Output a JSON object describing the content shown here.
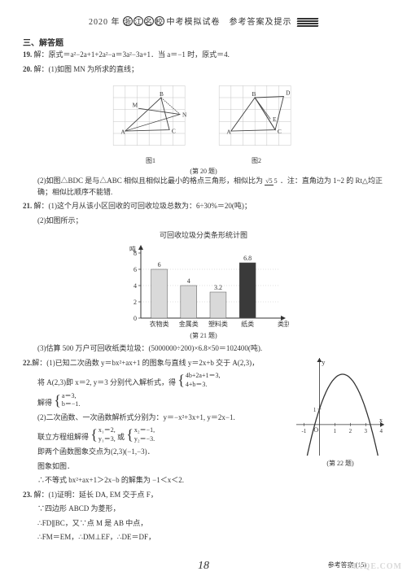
{
  "header": {
    "year": "2020 年",
    "c1": "浙",
    "c2": "江",
    "c3": "名",
    "c4": "校",
    "rest": "中考模拟试卷　参考答案及提示"
  },
  "section3": "三、解答题",
  "q19": {
    "num": "19.",
    "text": "解：原式＝a²−2a+1+2a²−a＝3a²−3a+1．当 a＝−1 时，原式＝4."
  },
  "q20": {
    "num": "20.",
    "part1": "解：(1)如图 MN 为所求的直线；",
    "fig1_label": "图1",
    "fig2_label": "图2",
    "caption": "(第 20 题)",
    "grid": {
      "cols": 6,
      "rows": 5,
      "grid_color": "#bfbfbf",
      "axis_color": "#444444",
      "fig1": {
        "B": [
          4,
          4
        ],
        "A": [
          1,
          1.2
        ],
        "C": [
          4.7,
          1.3
        ],
        "M": [
          2.1,
          3.1
        ],
        "N": [
          5.6,
          2.6
        ],
        "pts_B": "B",
        "pts_A": "A",
        "pts_C": "C",
        "pts_M": "M",
        "pts_N": "N"
      },
      "fig2": {
        "B": [
          3,
          4
        ],
        "D": [
          5.4,
          4.1
        ],
        "A": [
          1,
          1.2
        ],
        "C": [
          4.7,
          1.3
        ],
        "E": [
          4.3,
          2.2
        ],
        "pts_B": "B",
        "pts_D": "D",
        "pts_A": "A",
        "pts_C": "C",
        "pts_E": "E"
      }
    },
    "part2a": "(2)如图△BDC 是与△ABC 相似且相似比最小的格点三角形，相似比为",
    "ratio_t": "√5",
    "ratio_b": "5",
    "part2b": "．注：直角边为 1~2 的 Rt△均正确；相似比顺序不能错."
  },
  "q21": {
    "num": "21.",
    "part1": "解：(1)这个月从该小区回收的可回收垃圾总数为：6÷30%＝20(吨)；",
    "part2": "(2)如图所示；",
    "chart": {
      "title": "可回收垃圾分类条形统计图",
      "ylabel": "吨",
      "categories": [
        "衣物类",
        "金属类",
        "塑料类",
        "纸类",
        "类别"
      ],
      "values": [
        6,
        4,
        3.2,
        6.8
      ],
      "labels": [
        "6",
        "4",
        "3.2",
        "6.8"
      ],
      "colors": [
        "#d9d9d9",
        "#d9d9d9",
        "#d9d9d9",
        "#3a3a3a"
      ],
      "ylim": [
        0,
        8
      ],
      "ytick_step": 2,
      "bar_width": 0.55,
      "grid_color": "#999999",
      "axis_color": "#333333",
      "bg": "#ffffff",
      "caption": "(第 21 题)"
    },
    "part3": "(3)估算 500 万户可回收纸类垃圾：(5000000÷200)×6.8×50＝102400(吨)."
  },
  "q22": {
    "num": "22.",
    "line1": "解：(1)已知二次函数 y＝bx²+ax+1 的图象与直线 y＝2x+b 交于 A(2,3)，",
    "line2a": "将 A(2,3)即 x＝2, y＝3 分别代入解析式，得",
    "sys1_e1": "4b+2a+1＝3,",
    "sys1_e2": "4+b＝3.",
    "line3a": "解得",
    "sys2_e1": "a＝3,",
    "sys2_e2": "b＝−1.",
    "line4": "(2)二次函数、一次函数解析式分别为：y＝−x²+3x+1, y＝2x−1.",
    "line5a": "联立方程组解得",
    "sys3_e1": "x₁＝2,",
    "sys3_e2": "y₁＝3,",
    "line5b": "或",
    "sys4_e1": "x₂＝−1,",
    "sys4_e2": "y₂＝−3.",
    "line6": "即两个函数图象交点为(2,3)(−1,−3)．",
    "line7": "图象如图．",
    "line8": "∴不等式 bx²+ax+1＞2x−b 的解集为 −1＜x＜2.",
    "caption": "(第 22 题)",
    "graph": {
      "xlim": [
        -1.5,
        4.2
      ],
      "ylim": [
        -2,
        4.3
      ],
      "xticks": [
        -1,
        0,
        1,
        2,
        3,
        4
      ],
      "yticks": [
        1
      ],
      "axis_color": "#333333",
      "parabola_color": "#333333",
      "parabola_a": -1,
      "parabola_b": 3,
      "parabola_c": 1
    }
  },
  "q23": {
    "num": "23.",
    "l1": "解：(1)证明：延长 DA, EM 交于点 F，",
    "l2": "∵四边形 ABCD 为菱形，",
    "l3": "∴FD∥BC，又∵点 M 是 AB 中点，",
    "l4": "∴FM＝EM，∴DM⊥EF，∴DE＝DF，"
  },
  "footer": {
    "right": "参考答案 (15)",
    "wm": "MXQE.COM",
    "handw": "18"
  }
}
